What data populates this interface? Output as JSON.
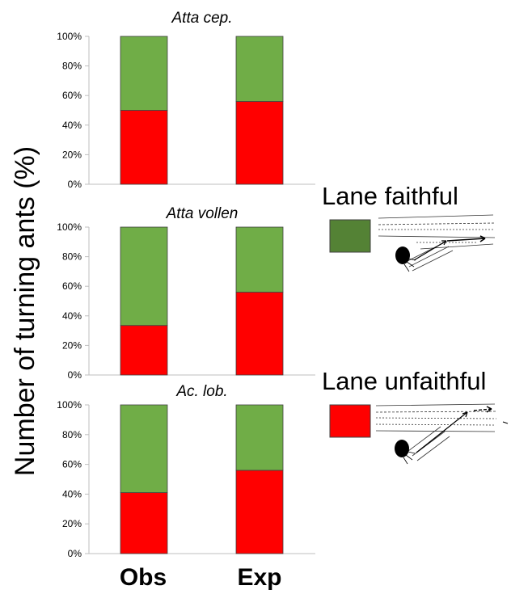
{
  "y_axis_label": "Number of turning ants (%)",
  "x_categories": [
    "Obs",
    "Exp"
  ],
  "colors": {
    "faithful": "#70ad47",
    "unfaithful": "#ff0000",
    "axis": "#bfbfbf",
    "legend_faithful": "#548235"
  },
  "legend": [
    {
      "label": "Lane faithful",
      "color": "#548235"
    },
    {
      "label": "Lane unfaithful",
      "color": "#ff0000"
    }
  ],
  "chart_data": [
    {
      "type": "bar",
      "stacked": true,
      "title": "Atta cep.",
      "categories": [
        "Obs",
        "Exp"
      ],
      "series": [
        {
          "name": "Lane unfaithful",
          "values": [
            50,
            56
          ]
        },
        {
          "name": "Lane faithful",
          "values": [
            50,
            44
          ]
        }
      ],
      "yticks": [
        "0%",
        "20%",
        "40%",
        "60%",
        "80%",
        "100%"
      ],
      "ylim": [
        0,
        100
      ]
    },
    {
      "type": "bar",
      "stacked": true,
      "title": "Atta vollen",
      "categories": [
        "Obs",
        "Exp"
      ],
      "series": [
        {
          "name": "Lane unfaithful",
          "values": [
            33.5,
            56
          ]
        },
        {
          "name": "Lane faithful",
          "values": [
            66.5,
            44
          ]
        }
      ],
      "yticks": [
        "0%",
        "20%",
        "40%",
        "60%",
        "80%",
        "100%"
      ],
      "ylim": [
        0,
        100
      ]
    },
    {
      "type": "bar",
      "stacked": true,
      "title": "Ac. lob.",
      "categories": [
        "Obs",
        "Exp"
      ],
      "series": [
        {
          "name": "Lane unfaithful",
          "values": [
            41,
            56
          ]
        },
        {
          "name": "Lane faithful",
          "values": [
            59,
            44
          ]
        }
      ],
      "yticks": [
        "0%",
        "20%",
        "40%",
        "60%",
        "80%",
        "100%"
      ],
      "ylim": [
        0,
        100
      ]
    }
  ]
}
